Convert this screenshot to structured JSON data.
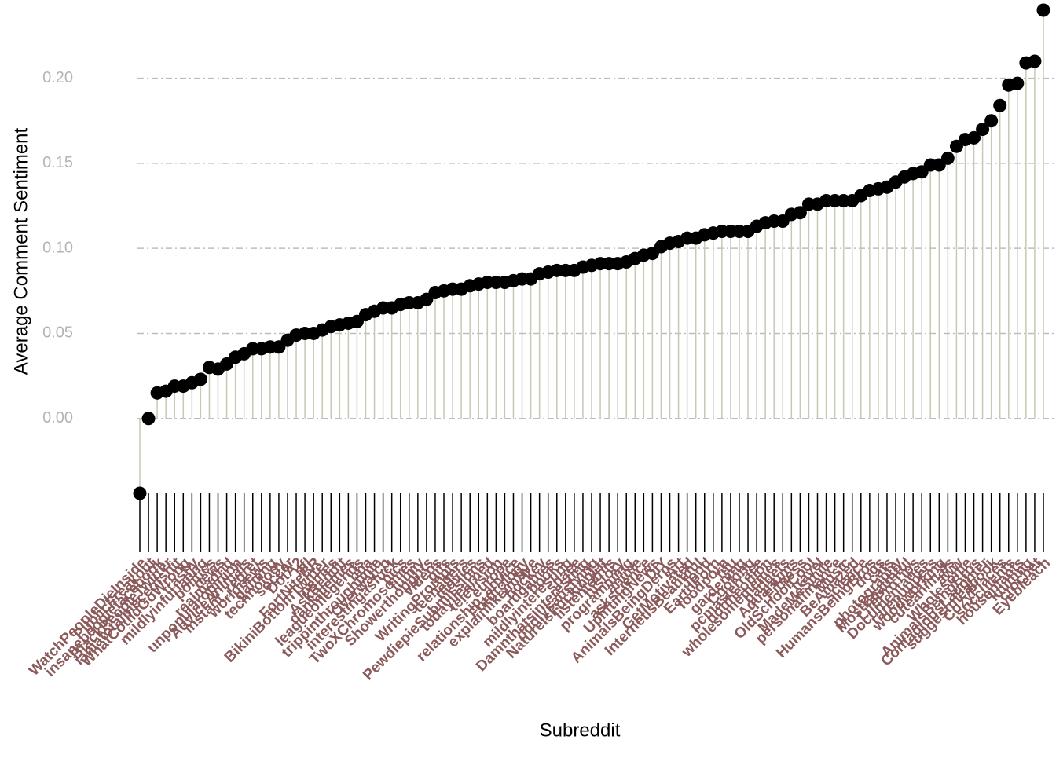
{
  "chart_data": {
    "type": "lollipop",
    "x_label": "Subreddit",
    "y_label": "Average Comment Sentiment",
    "categories": [
      "WatchPeopleDieInside",
      "PublicFreakout",
      "insanepeoplefacebook",
      "BlackPeopleTwitter",
      "iamatotalpieceofshit",
      "WhatCouldGoWrong",
      "trashy",
      "mildlyinfuriating",
      "politics",
      "news",
      "realmadrid",
      "unpopularopinion",
      "AdviceAnimals",
      "instant_regret",
      "worldnews",
      "gaming",
      "technology",
      "soccer",
      "DotA2",
      "nfl",
      "FortNiteBR",
      "BikiniBottomTwitter",
      "memes",
      "AskReddit",
      "dankmemes",
      "leagueoflegends",
      "nba",
      "trippinthroughtime",
      "Overwatch",
      "interestingasfuck",
      "pics",
      "TwoXChromosomes",
      "funny",
      "Showerthoughts",
      "videos",
      "gifs",
      "WritingPrompts",
      "teenagers",
      "movies",
      "PewdiepieSubmissions",
      "todayilearned",
      "television",
      "europe",
      "relationship_advice",
      "Futurology",
      "explainlikeimfive",
      "hockey",
      "boardgames",
      "books",
      "mildlyinteresting",
      "space",
      "Damnthatsinteresting",
      "oddlysatisfying",
      "NatureIsFuckingLit",
      "listentothis",
      "history",
      "programming",
      "anime",
      "askscience",
      "UpliftingNews",
      "DIY",
      "AnimalsBeingDerps",
      "Art",
      "GetMotivated",
      "InternetIsBeautiful",
      "food",
      "EarthPorn",
      "foodporn",
      "tifu",
      "gardening",
      "Cooking",
      "pcmasterrace",
      "nottheonion",
      "wholesomememes",
      "gadgets",
      "Aquariums",
      "Fitness",
      "OldSchoolCool",
      "travel",
      "MadeMeSmile",
      "personalfinance",
      "Music",
      "BeAmazed",
      "science",
      "HumansBeingBros",
      "dogs",
      "cats",
      "photography",
      "MostBeautiful",
      "LifeProTips",
      "Documentaries",
      "rarepuppers",
      "woodworking",
      "cuteanimals",
      "aww",
      "Wholesome",
      "AnimalsBeingBros",
      "ContagiousLaughter",
      "suggestmeabook",
      "CozyPlaces",
      "succulents",
      "houseplants",
      "knitting",
      "crochet",
      "Eyebleach"
    ],
    "values": [
      -0.044,
      0.0,
      0.015,
      0.016,
      0.019,
      0.019,
      0.021,
      0.023,
      0.03,
      0.029,
      0.032,
      0.036,
      0.038,
      0.041,
      0.041,
      0.042,
      0.042,
      0.046,
      0.049,
      0.05,
      0.05,
      0.052,
      0.054,
      0.055,
      0.056,
      0.057,
      0.061,
      0.063,
      0.065,
      0.065,
      0.067,
      0.068,
      0.068,
      0.07,
      0.074,
      0.075,
      0.076,
      0.076,
      0.078,
      0.079,
      0.08,
      0.08,
      0.08,
      0.081,
      0.082,
      0.082,
      0.085,
      0.086,
      0.087,
      0.087,
      0.087,
      0.089,
      0.09,
      0.091,
      0.091,
      0.091,
      0.092,
      0.094,
      0.096,
      0.097,
      0.101,
      0.103,
      0.104,
      0.106,
      0.106,
      0.108,
      0.109,
      0.11,
      0.11,
      0.11,
      0.11,
      0.113,
      0.115,
      0.116,
      0.116,
      0.12,
      0.121,
      0.126,
      0.126,
      0.128,
      0.128,
      0.128,
      0.128,
      0.131,
      0.134,
      0.135,
      0.136,
      0.139,
      0.142,
      0.144,
      0.145,
      0.149,
      0.149,
      0.153,
      0.16,
      0.164,
      0.165,
      0.17,
      0.175,
      0.184,
      0.196,
      0.197,
      0.209,
      0.21,
      0.24
    ],
    "color": "#000000",
    "stem_color": "#c8c8b4",
    "label_color": "#8b5a5a",
    "ylim": [
      -0.044,
      0.24
    ],
    "yticks": [
      {
        "value": 0,
        "label": "0.00"
      },
      {
        "value": 0.05,
        "label": "0.05"
      },
      {
        "value": 0.1,
        "label": "0.10"
      },
      {
        "value": 0.15,
        "label": "0.15"
      },
      {
        "value": 0.2,
        "label": "0.20"
      }
    ],
    "grid": true
  }
}
